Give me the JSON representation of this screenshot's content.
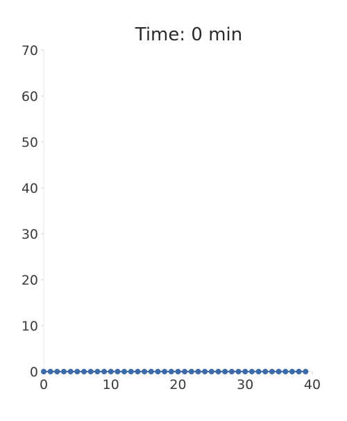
{
  "chart_data": {
    "type": "line",
    "title": "Time: 0 min",
    "xlabel": "",
    "ylabel": "",
    "xlim": [
      0,
      40
    ],
    "ylim": [
      0,
      70
    ],
    "x_ticks": [
      "0",
      "10",
      "20",
      "30",
      "40"
    ],
    "y_ticks": [
      "0",
      "10",
      "20",
      "30",
      "40",
      "50",
      "60",
      "70"
    ],
    "grid": false,
    "series": [
      {
        "color": "#3d6aa8",
        "x": [
          0,
          1,
          2,
          3,
          4,
          5,
          6,
          7,
          8,
          9,
          10,
          11,
          12,
          13,
          14,
          15,
          16,
          17,
          18,
          19,
          20,
          21,
          22,
          23,
          24,
          25,
          26,
          27,
          28,
          29,
          30,
          31,
          32,
          33,
          34,
          35,
          36,
          37,
          38,
          39
        ],
        "y": [
          0,
          0,
          0,
          0,
          0,
          0,
          0,
          0,
          0,
          0,
          0,
          0,
          0,
          0,
          0,
          0,
          0,
          0,
          0,
          0,
          0,
          0,
          0,
          0,
          0,
          0,
          0,
          0,
          0,
          0,
          0,
          0,
          0,
          0,
          0,
          0,
          0,
          0,
          0,
          0
        ]
      }
    ]
  }
}
